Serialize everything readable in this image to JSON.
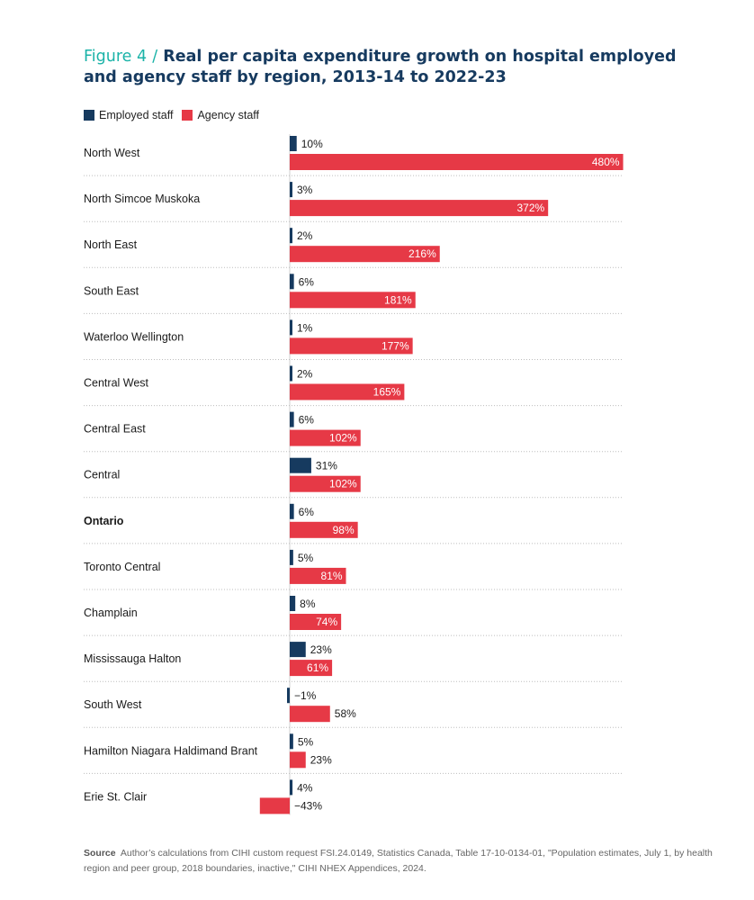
{
  "header": {
    "figure_label": "Figure 4",
    "separator": "/",
    "title": "Real per capita expenditure growth on hospital employed and agency staff by region, 2013-14 to 2022-23"
  },
  "colors": {
    "employed": "#163a5f",
    "agency": "#e63946"
  },
  "chart_data": {
    "type": "bar",
    "orientation": "horizontal",
    "categories": [
      "North West",
      "North Simcoe Muskoka",
      "North East",
      "South East",
      "Waterloo Wellington",
      "Central West",
      "Central East",
      "Central",
      "Ontario",
      "Toronto Central",
      "Champlain",
      "Mississauga Halton",
      "South West",
      "Hamilton Niagara Haldimand Brant",
      "Erie St. Clair"
    ],
    "bold_categories": [
      "Ontario"
    ],
    "series": [
      {
        "name": "Employed staff",
        "values": [
          10,
          3,
          2,
          6,
          1,
          2,
          6,
          31,
          6,
          5,
          8,
          23,
          -1,
          5,
          4
        ],
        "labels": [
          "10%",
          "3%",
          "2%",
          "6%",
          "1%",
          "2%",
          "6%",
          "31%",
          "6%",
          "5%",
          "8%",
          "23%",
          "−1%",
          "5%",
          "4%"
        ]
      },
      {
        "name": "Agency staff",
        "values": [
          480,
          372,
          216,
          181,
          177,
          165,
          102,
          102,
          98,
          81,
          74,
          61,
          58,
          23,
          -43
        ],
        "labels": [
          "480%",
          "372%",
          "216%",
          "181%",
          "177%",
          "165%",
          "102%",
          "102%",
          "98%",
          "81%",
          "74%",
          "61%",
          "58%",
          "23%",
          "−43%"
        ]
      }
    ],
    "unit": "%",
    "grid": false,
    "legend_position": "top-left"
  },
  "source": {
    "label": "Source",
    "text": "Author’s calculations from CIHI custom request FSI.24.0149, Statistics Canada, Table 17-10-0134-01, \"Population estimates, July 1, by health region and peer group, 2018 boundaries, inactive,\" CIHI NHEX Appendices, 2024."
  }
}
